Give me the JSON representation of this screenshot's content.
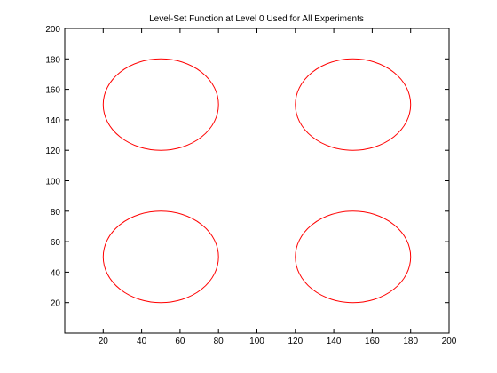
{
  "chart_data": {
    "type": "line",
    "title": "Level-Set Function at Level 0 Used for All Experiments",
    "xlabel": "",
    "ylabel": "",
    "xlim": [
      0,
      200
    ],
    "ylim": [
      0,
      200
    ],
    "xticks": [
      20,
      40,
      60,
      80,
      100,
      120,
      140,
      160,
      180,
      200
    ],
    "yticks": [
      20,
      40,
      60,
      80,
      100,
      120,
      140,
      160,
      180,
      200
    ],
    "grid": false,
    "line_color": "#ff0000",
    "contours": [
      {
        "center": [
          50,
          150
        ],
        "radius": 30
      },
      {
        "center": [
          150,
          150
        ],
        "radius": 30
      },
      {
        "center": [
          50,
          50
        ],
        "radius": 30
      },
      {
        "center": [
          150,
          50
        ],
        "radius": 30
      }
    ]
  }
}
